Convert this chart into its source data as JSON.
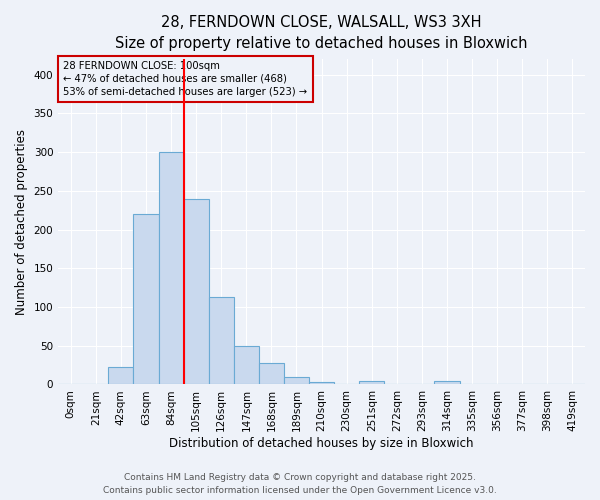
{
  "title1": "28, FERNDOWN CLOSE, WALSALL, WS3 3XH",
  "title2": "Size of property relative to detached houses in Bloxwich",
  "xlabel": "Distribution of detached houses by size in Bloxwich",
  "ylabel": "Number of detached properties",
  "bin_labels": [
    "0sqm",
    "21sqm",
    "42sqm",
    "63sqm",
    "84sqm",
    "105sqm",
    "126sqm",
    "147sqm",
    "168sqm",
    "189sqm",
    "210sqm",
    "230sqm",
    "251sqm",
    "272sqm",
    "293sqm",
    "314sqm",
    "335sqm",
    "356sqm",
    "377sqm",
    "398sqm",
    "419sqm"
  ],
  "bar_heights": [
    1,
    1,
    23,
    220,
    300,
    240,
    113,
    50,
    28,
    10,
    3,
    1,
    5,
    1,
    1,
    4,
    1,
    1,
    1,
    1,
    1
  ],
  "bar_color": "#c9d9ee",
  "bar_edge_color": "#6aaad4",
  "vline_color": "red",
  "annotation_box_edge_color": "#cc0000",
  "marker_label": "28 FERNDOWN CLOSE: 100sqm",
  "annotation_line1": "← 47% of detached houses are smaller (468)",
  "annotation_line2": "53% of semi-detached houses are larger (523) →",
  "vline_x_index": 4,
  "ylim": [
    0,
    420
  ],
  "yticks": [
    0,
    50,
    100,
    150,
    200,
    250,
    300,
    350,
    400
  ],
  "footnote1": "Contains HM Land Registry data © Crown copyright and database right 2025.",
  "footnote2": "Contains public sector information licensed under the Open Government Licence v3.0.",
  "bg_color": "#eef2f9",
  "grid_color": "#ffffff",
  "title_fontsize": 10.5,
  "subtitle_fontsize": 9.5,
  "axis_label_fontsize": 8.5,
  "tick_fontsize": 7.5,
  "footnote_fontsize": 6.5
}
